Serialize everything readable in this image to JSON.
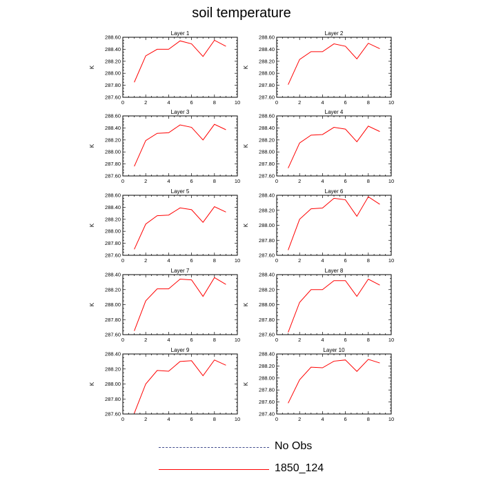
{
  "title": "soil temperature",
  "legend": [
    {
      "label": "No Obs",
      "style": "dashed",
      "color": "#3f4a8c"
    },
    {
      "label": "1850_124",
      "style": "solid",
      "color": "#ff0000"
    }
  ],
  "chart_data": [
    {
      "type": "line",
      "title": "Layer 1",
      "ylabel": "K",
      "xlim": [
        0,
        10
      ],
      "ylim": [
        287.6,
        288.6
      ],
      "xticks": [
        "0",
        "2",
        "4",
        "6",
        "8",
        "10"
      ],
      "yticks": [
        "287.60",
        "287.80",
        "288.00",
        "288.20",
        "288.40",
        "288.60"
      ],
      "x": [
        1,
        2,
        3,
        4,
        5,
        6,
        7,
        8,
        9
      ],
      "series": [
        {
          "name": "1850_124",
          "values": [
            287.85,
            288.29,
            288.4,
            288.4,
            288.54,
            288.49,
            288.28,
            288.55,
            288.45
          ]
        }
      ]
    },
    {
      "type": "line",
      "title": "Layer 2",
      "ylabel": "K",
      "xlim": [
        0,
        10
      ],
      "ylim": [
        287.6,
        288.6
      ],
      "xticks": [
        "0",
        "2",
        "4",
        "6",
        "8",
        "10"
      ],
      "yticks": [
        "287.60",
        "287.80",
        "288.00",
        "288.20",
        "288.40",
        "288.60"
      ],
      "x": [
        1,
        2,
        3,
        4,
        5,
        6,
        7,
        8,
        9
      ],
      "series": [
        {
          "name": "1850_124",
          "values": [
            287.81,
            288.23,
            288.36,
            288.36,
            288.49,
            288.45,
            288.24,
            288.5,
            288.41
          ]
        }
      ]
    },
    {
      "type": "line",
      "title": "Layer 3",
      "ylabel": "K",
      "xlim": [
        0,
        10
      ],
      "ylim": [
        287.6,
        288.6
      ],
      "xticks": [
        "0",
        "2",
        "4",
        "6",
        "8",
        "10"
      ],
      "yticks": [
        "287.60",
        "287.80",
        "288.00",
        "288.20",
        "288.40",
        "288.60"
      ],
      "x": [
        1,
        2,
        3,
        4,
        5,
        6,
        7,
        8,
        9
      ],
      "series": [
        {
          "name": "1850_124",
          "values": [
            287.76,
            288.19,
            288.31,
            288.32,
            288.45,
            288.41,
            288.2,
            288.46,
            288.37
          ]
        }
      ]
    },
    {
      "type": "line",
      "title": "Layer 4",
      "ylabel": "K",
      "xlim": [
        0,
        10
      ],
      "ylim": [
        287.6,
        288.6
      ],
      "xticks": [
        "0",
        "2",
        "4",
        "6",
        "8",
        "10"
      ],
      "yticks": [
        "287.60",
        "287.80",
        "288.00",
        "288.20",
        "288.40",
        "288.60"
      ],
      "x": [
        1,
        2,
        3,
        4,
        5,
        6,
        7,
        8,
        9
      ],
      "series": [
        {
          "name": "1850_124",
          "values": [
            287.73,
            288.15,
            288.28,
            288.29,
            288.41,
            288.38,
            288.17,
            288.43,
            288.34
          ]
        }
      ]
    },
    {
      "type": "line",
      "title": "Layer 5",
      "ylabel": "K",
      "xlim": [
        0,
        10
      ],
      "ylim": [
        287.6,
        288.6
      ],
      "xticks": [
        "0",
        "2",
        "4",
        "6",
        "8",
        "10"
      ],
      "yticks": [
        "287.60",
        "287.80",
        "288.00",
        "288.20",
        "288.40",
        "288.60"
      ],
      "x": [
        1,
        2,
        3,
        4,
        5,
        6,
        7,
        8,
        9
      ],
      "series": [
        {
          "name": "1850_124",
          "values": [
            287.7,
            288.12,
            288.26,
            288.27,
            288.39,
            288.36,
            288.15,
            288.41,
            288.32
          ]
        }
      ]
    },
    {
      "type": "line",
      "title": "Layer 6",
      "ylabel": "K",
      "xlim": [
        0,
        10
      ],
      "ylim": [
        287.6,
        288.4
      ],
      "xticks": [
        "0",
        "2",
        "4",
        "6",
        "8",
        "10"
      ],
      "yticks": [
        "287.60",
        "287.80",
        "288.00",
        "288.20",
        "288.40"
      ],
      "x": [
        1,
        2,
        3,
        4,
        5,
        6,
        7,
        8,
        9
      ],
      "series": [
        {
          "name": "1850_124",
          "values": [
            287.67,
            288.08,
            288.22,
            288.23,
            288.36,
            288.34,
            288.12,
            288.38,
            288.28
          ]
        }
      ]
    },
    {
      "type": "line",
      "title": "Layer 7",
      "ylabel": "K",
      "xlim": [
        0,
        10
      ],
      "ylim": [
        287.6,
        288.4
      ],
      "xticks": [
        "0",
        "2",
        "4",
        "6",
        "8",
        "10"
      ],
      "yticks": [
        "287.60",
        "287.80",
        "288.00",
        "288.20",
        "288.40"
      ],
      "x": [
        1,
        2,
        3,
        4,
        5,
        6,
        7,
        8,
        9
      ],
      "series": [
        {
          "name": "1850_124",
          "values": [
            287.65,
            288.05,
            288.21,
            288.21,
            288.34,
            288.33,
            288.11,
            288.36,
            288.27
          ]
        }
      ]
    },
    {
      "type": "line",
      "title": "Layer 8",
      "ylabel": "K",
      "xlim": [
        0,
        10
      ],
      "ylim": [
        287.6,
        288.4
      ],
      "xticks": [
        "0",
        "2",
        "4",
        "6",
        "8",
        "10"
      ],
      "yticks": [
        "287.60",
        "287.80",
        "288.00",
        "288.20",
        "288.40"
      ],
      "x": [
        1,
        2,
        3,
        4,
        5,
        6,
        7,
        8,
        9
      ],
      "series": [
        {
          "name": "1850_124",
          "values": [
            287.63,
            288.03,
            288.2,
            288.2,
            288.32,
            288.32,
            288.11,
            288.34,
            288.26
          ]
        }
      ]
    },
    {
      "type": "line",
      "title": "Layer 9",
      "ylabel": "K",
      "xlim": [
        0,
        10
      ],
      "ylim": [
        287.6,
        288.4
      ],
      "xticks": [
        "0",
        "2",
        "4",
        "6",
        "8",
        "10"
      ],
      "yticks": [
        "287.60",
        "287.80",
        "288.00",
        "288.20",
        "288.40"
      ],
      "x": [
        1,
        2,
        3,
        4,
        5,
        6,
        7,
        8,
        9
      ],
      "series": [
        {
          "name": "1850_124",
          "values": [
            287.61,
            288.0,
            288.18,
            288.17,
            288.3,
            288.31,
            288.11,
            288.32,
            288.25
          ]
        }
      ]
    },
    {
      "type": "line",
      "title": "Layer 10",
      "ylabel": "K",
      "xlim": [
        0,
        10
      ],
      "ylim": [
        287.4,
        288.4
      ],
      "xticks": [
        "0",
        "2",
        "4",
        "6",
        "8",
        "10"
      ],
      "yticks": [
        "287.40",
        "287.60",
        "287.80",
        "288.00",
        "288.20",
        "288.40"
      ],
      "x": [
        1,
        2,
        3,
        4,
        5,
        6,
        7,
        8,
        9
      ],
      "series": [
        {
          "name": "1850_124",
          "values": [
            287.58,
            287.97,
            288.18,
            288.17,
            288.28,
            288.3,
            288.11,
            288.31,
            288.25
          ]
        }
      ]
    }
  ]
}
